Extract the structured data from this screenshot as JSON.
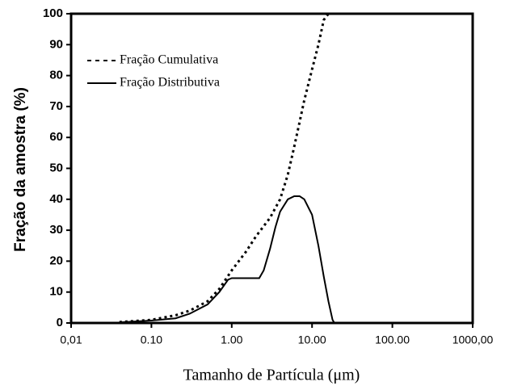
{
  "chart_data": {
    "type": "line",
    "xlabel": "Tamanho de Partícula (μm)",
    "ylabel": "Fração da amostra (%)",
    "xscale": "log",
    "xlim": [
      0.01,
      1000
    ],
    "xticks": [
      {
        "value": 0.01,
        "label": "0,01"
      },
      {
        "value": 0.1,
        "label": "0.10"
      },
      {
        "value": 1,
        "label": "1.00"
      },
      {
        "value": 10,
        "label": "10.00"
      },
      {
        "value": 100,
        "label": "100.00"
      },
      {
        "value": 1000,
        "label": "1000,00"
      }
    ],
    "ylim": [
      0,
      100
    ],
    "yticks": [
      0,
      10,
      20,
      30,
      40,
      50,
      60,
      70,
      80,
      90,
      100
    ],
    "legend": "upper left",
    "series": [
      {
        "name": "Fração Cumulativa",
        "color": "#000000",
        "style": "dotted",
        "x": [
          0.04,
          0.1,
          0.2,
          0.3,
          0.5,
          0.7,
          1.0,
          1.5,
          2,
          3,
          4,
          5,
          6,
          7,
          8,
          10,
          12,
          14,
          16,
          18
        ],
        "values": [
          0.3,
          1,
          2.5,
          4,
          7,
          11,
          17,
          23,
          28,
          34,
          40,
          48,
          57,
          65,
          72,
          82,
          90,
          98,
          100,
          100
        ]
      },
      {
        "name": "Fração Distributiva",
        "color": "#000000",
        "style": "solid",
        "x": [
          0.04,
          0.1,
          0.2,
          0.3,
          0.5,
          0.7,
          0.9,
          1.0,
          1.5,
          2.2,
          2.5,
          3,
          3.5,
          4,
          5,
          6,
          7,
          8,
          10,
          12,
          14,
          16,
          18,
          19
        ],
        "values": [
          0.2,
          0.8,
          1.5,
          3,
          6,
          10,
          14,
          14.5,
          14.5,
          14.5,
          17,
          24,
          31,
          36,
          40,
          41,
          41,
          40,
          35,
          25,
          15,
          7,
          1,
          0
        ]
      }
    ]
  }
}
